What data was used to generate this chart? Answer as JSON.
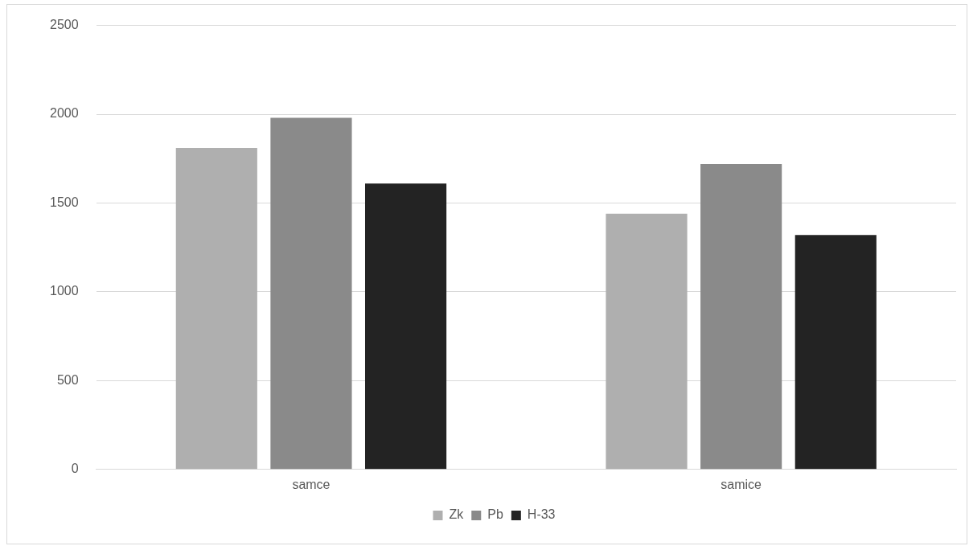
{
  "chart_data": {
    "type": "bar",
    "categories": [
      "samce",
      "samice"
    ],
    "series": [
      {
        "name": "Zk",
        "color": "#afafaf",
        "values": [
          1810,
          1440
        ]
      },
      {
        "name": "Pb",
        "color": "#8a8a8a",
        "values": [
          1980,
          1720
        ]
      },
      {
        "name": "H-33",
        "color": "#232323",
        "values": [
          1610,
          1320
        ]
      }
    ],
    "ylim": [
      0,
      2500
    ],
    "yticks": [
      0,
      500,
      1000,
      1500,
      2000,
      2500
    ],
    "grid": "y",
    "legend": "bottom"
  }
}
